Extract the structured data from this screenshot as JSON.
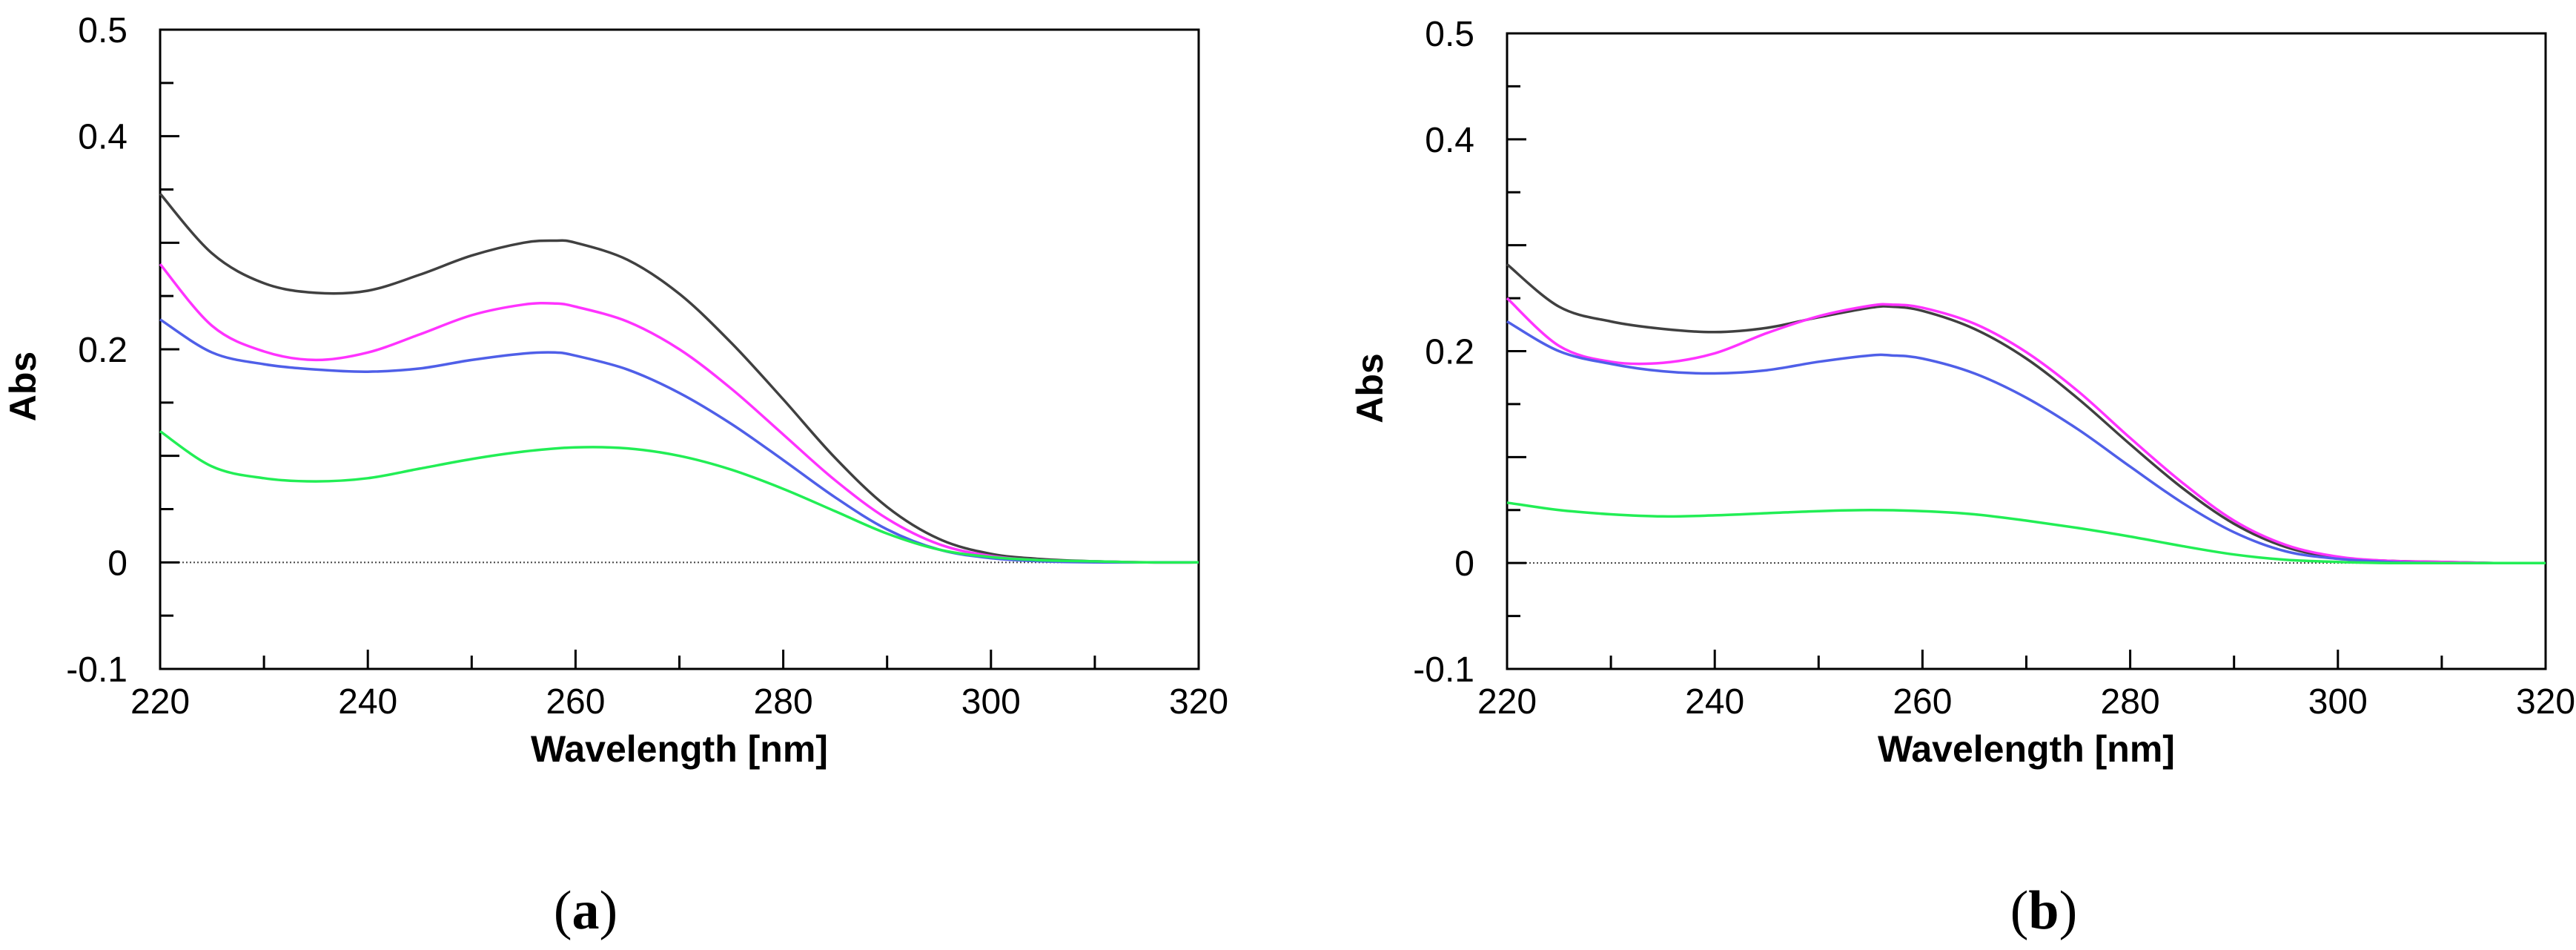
{
  "chart_data": [
    {
      "type": "line",
      "panel_label": "a",
      "xlabel": "Wavelength [nm]",
      "ylabel": "Abs",
      "xlim": [
        220,
        320
      ],
      "ylim": [
        -0.1,
        0.5
      ],
      "x_ticks": [
        220,
        240,
        260,
        280,
        300,
        320
      ],
      "y_ticks": [
        -0.1,
        0,
        0.2,
        0.4,
        0.5
      ],
      "y_tick_labels": [
        "-0.1",
        "0",
        "0.2",
        "0.4",
        "0.5"
      ],
      "baseline": 0,
      "series": [
        {
          "name": "black",
          "color": "#404040",
          "x": [
            220,
            225,
            230,
            235,
            240,
            245,
            250,
            255,
            258,
            260,
            265,
            270,
            275,
            280,
            285,
            290,
            295,
            300,
            305,
            310,
            315,
            320
          ],
          "y": [
            0.346,
            0.29,
            0.262,
            0.253,
            0.255,
            0.27,
            0.288,
            0.3,
            0.302,
            0.3,
            0.284,
            0.252,
            0.206,
            0.153,
            0.098,
            0.052,
            0.022,
            0.008,
            0.003,
            0.001,
            0.0,
            0.0
          ]
        },
        {
          "name": "magenta",
          "color": "#ff33ff",
          "x": [
            220,
            225,
            230,
            235,
            240,
            245,
            250,
            255,
            258,
            260,
            265,
            270,
            275,
            280,
            285,
            290,
            295,
            300,
            305,
            310,
            315,
            320
          ],
          "y": [
            0.28,
            0.222,
            0.198,
            0.19,
            0.197,
            0.214,
            0.232,
            0.242,
            0.243,
            0.24,
            0.226,
            0.2,
            0.163,
            0.12,
            0.077,
            0.041,
            0.017,
            0.006,
            0.002,
            0.001,
            0.0,
            0.0
          ]
        },
        {
          "name": "blue",
          "color": "#4f5fe8",
          "x": [
            220,
            225,
            230,
            235,
            240,
            245,
            250,
            255,
            258,
            260,
            265,
            270,
            275,
            280,
            285,
            290,
            295,
            300,
            305,
            310,
            315,
            320
          ],
          "y": [
            0.228,
            0.197,
            0.186,
            0.181,
            0.179,
            0.182,
            0.19,
            0.196,
            0.197,
            0.194,
            0.181,
            0.159,
            0.13,
            0.096,
            0.061,
            0.031,
            0.012,
            0.004,
            0.001,
            0.0,
            0.0,
            0.0
          ]
        },
        {
          "name": "green",
          "color": "#22ee55",
          "x": [
            220,
            225,
            230,
            235,
            240,
            245,
            250,
            255,
            260,
            265,
            270,
            275,
            280,
            285,
            290,
            295,
            300,
            305,
            310,
            315,
            320
          ],
          "y": [
            0.123,
            0.09,
            0.079,
            0.076,
            0.079,
            0.088,
            0.097,
            0.104,
            0.108,
            0.107,
            0.1,
            0.087,
            0.069,
            0.048,
            0.027,
            0.012,
            0.005,
            0.002,
            0.001,
            0.0,
            0.0
          ]
        }
      ]
    },
    {
      "type": "line",
      "panel_label": "b",
      "xlabel": "Wavelength [nm]",
      "ylabel": "Abs",
      "xlim": [
        220,
        320
      ],
      "ylim": [
        -0.1,
        0.5
      ],
      "x_ticks": [
        220,
        240,
        260,
        280,
        300,
        320
      ],
      "y_ticks": [
        -0.1,
        0,
        0.2,
        0.4,
        0.5
      ],
      "y_tick_labels": [
        "-0.1",
        "0",
        "0.2",
        "0.4",
        "0.5"
      ],
      "baseline": 0,
      "series": [
        {
          "name": "black",
          "color": "#404040",
          "x": [
            220,
            225,
            230,
            235,
            240,
            245,
            250,
            255,
            257,
            260,
            265,
            270,
            275,
            280,
            285,
            290,
            295,
            300,
            305,
            310,
            315,
            320
          ],
          "y": [
            0.282,
            0.242,
            0.228,
            0.221,
            0.218,
            0.222,
            0.232,
            0.241,
            0.242,
            0.238,
            0.221,
            0.193,
            0.155,
            0.112,
            0.071,
            0.037,
            0.015,
            0.005,
            0.002,
            0.001,
            0.0,
            0.0
          ]
        },
        {
          "name": "magenta",
          "color": "#ff33ff",
          "x": [
            220,
            225,
            230,
            235,
            240,
            245,
            250,
            255,
            257,
            260,
            265,
            270,
            275,
            280,
            285,
            290,
            295,
            300,
            305,
            310,
            315,
            320
          ],
          "y": [
            0.25,
            0.205,
            0.19,
            0.189,
            0.198,
            0.217,
            0.233,
            0.243,
            0.244,
            0.241,
            0.226,
            0.199,
            0.162,
            0.118,
            0.076,
            0.04,
            0.017,
            0.006,
            0.002,
            0.001,
            0.0,
            0.0
          ]
        },
        {
          "name": "blue",
          "color": "#4f5fe8",
          "x": [
            220,
            225,
            230,
            235,
            240,
            245,
            250,
            255,
            257,
            260,
            265,
            270,
            275,
            280,
            285,
            290,
            295,
            300,
            305,
            310,
            315,
            320
          ],
          "y": [
            0.228,
            0.2,
            0.188,
            0.181,
            0.179,
            0.182,
            0.19,
            0.196,
            0.196,
            0.193,
            0.179,
            0.156,
            0.126,
            0.091,
            0.057,
            0.029,
            0.011,
            0.004,
            0.001,
            0.0,
            0.0,
            0.0
          ]
        },
        {
          "name": "green",
          "color": "#22ee55",
          "x": [
            220,
            225,
            230,
            235,
            240,
            245,
            250,
            255,
            260,
            265,
            270,
            275,
            280,
            285,
            290,
            295,
            300,
            305,
            310,
            315,
            320
          ],
          "y": [
            0.057,
            0.05,
            0.046,
            0.044,
            0.045,
            0.047,
            0.049,
            0.05,
            0.049,
            0.046,
            0.04,
            0.033,
            0.025,
            0.016,
            0.008,
            0.003,
            0.001,
            0.0,
            0.0,
            0.0,
            0.0
          ]
        }
      ]
    }
  ]
}
